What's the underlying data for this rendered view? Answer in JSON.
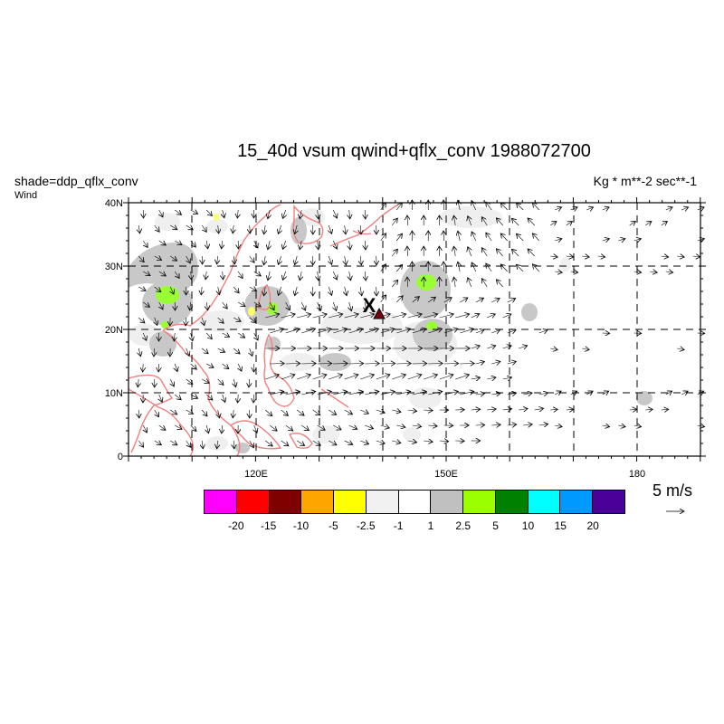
{
  "header": {
    "title": "15_40d vsum qwind+qflx_conv  1988072700",
    "left_label": "shade=ddp_qflx_conv",
    "left_sublabel": "Wind",
    "right_label": "Kg  * m**-2 sec**-1"
  },
  "map": {
    "projection": "lat-lon",
    "lon_range": [
      100,
      190
    ],
    "lat_range": [
      0,
      40
    ],
    "lat_ticks": [
      "0",
      "10N",
      "20N",
      "30N",
      "40N"
    ],
    "lon_ticks": [
      "120E",
      "150E",
      "180"
    ],
    "gridlines": "dashed",
    "coastline_color": "#f08080",
    "marker": {
      "label": "X",
      "lon": 141.5,
      "lat": 22.5,
      "color": "#7a0010"
    }
  },
  "reference_vector": {
    "label": "5 m/s"
  },
  "colorbar": {
    "colors": [
      "#ff00ff",
      "#ff0000",
      "#800000",
      "#ffa500",
      "#ffff00",
      "#f0f0f0",
      "#ffffff",
      "#c0c0c0",
      "#99ff00",
      "#008000",
      "#00ffff",
      "#0099ff",
      "#4b0099"
    ],
    "labels": [
      "-20",
      "-15",
      "-10",
      "-5",
      "-2.5",
      "-1",
      "1",
      "2.5",
      "5",
      "10",
      "15",
      "20"
    ]
  },
  "colors": {
    "light_gray_shade": "#efefef",
    "gray_shade": "#c8c8c8",
    "green_shade": "#99ff33",
    "yellow_shade": "#ffff66"
  }
}
